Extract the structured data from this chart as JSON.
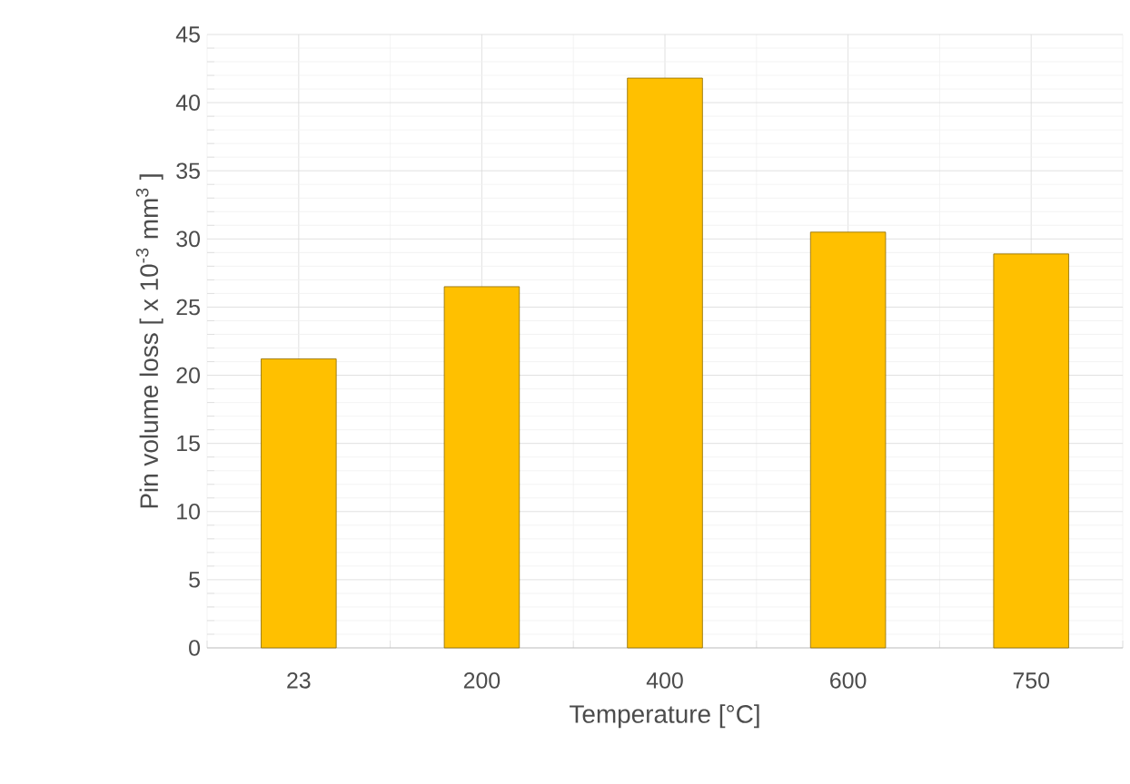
{
  "chart_data": {
    "type": "bar",
    "xlabel": "Temperature [°C]",
    "ylabel": "Pin volume loss [ x 10$^{-3}$ mm$^{3}$ ]",
    "categories": [
      "23",
      "200",
      "400",
      "600",
      "750"
    ],
    "values": [
      21.2,
      26.5,
      41.8,
      30.5,
      28.9
    ],
    "color": "#ffc000",
    "ylim": [
      0,
      45
    ],
    "yticks": [
      0,
      5,
      10,
      15,
      20,
      25,
      30,
      35,
      40,
      45
    ],
    "grid": true
  }
}
